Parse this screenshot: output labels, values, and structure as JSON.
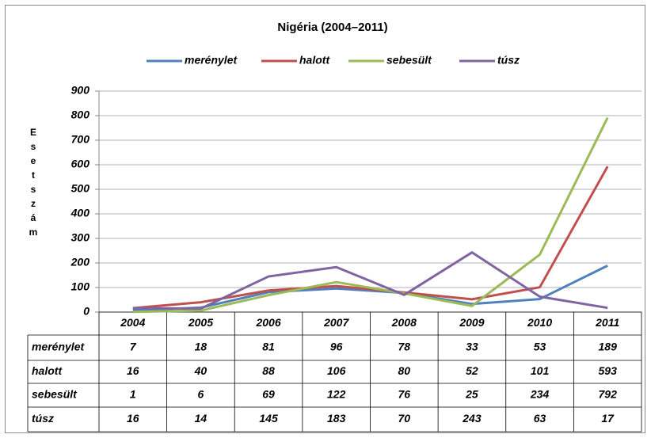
{
  "chart_data": {
    "type": "line",
    "title": "Nigéria (2004–2011)",
    "y_label": "Esetszám",
    "categories": [
      "2004",
      "2005",
      "2006",
      "2007",
      "2008",
      "2009",
      "2010",
      "2011"
    ],
    "series": [
      {
        "name": "merénylet",
        "color": "#4f81bd",
        "values": [
          7,
          18,
          81,
          96,
          78,
          33,
          53,
          189
        ]
      },
      {
        "name": "halott",
        "color": "#c0504d",
        "values": [
          16,
          40,
          88,
          106,
          80,
          52,
          101,
          593
        ]
      },
      {
        "name": "sebesült",
        "color": "#9bbb59",
        "values": [
          1,
          6,
          69,
          122,
          76,
          25,
          234,
          792
        ]
      },
      {
        "name": "túsz",
        "color": "#8064a2",
        "values": [
          16,
          14,
          145,
          183,
          70,
          243,
          63,
          17
        ]
      }
    ],
    "ylim": [
      0,
      900
    ],
    "yticks": [
      0,
      100,
      200,
      300,
      400,
      500,
      600,
      700,
      800,
      900
    ],
    "grid": true,
    "legend": "top"
  }
}
